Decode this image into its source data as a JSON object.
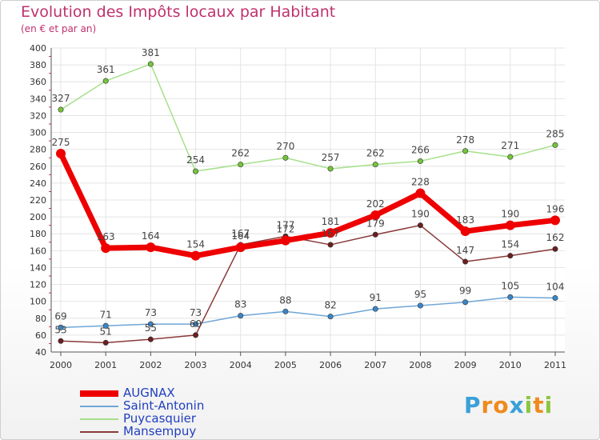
{
  "header": {
    "title": "Evolution des Impôts locaux par Habitant",
    "subtitle": "(en € et par an)"
  },
  "brand": {
    "letters": [
      "P",
      "r",
      "o",
      "x",
      "i",
      "t",
      "i"
    ],
    "colors": [
      "#3aa0d8",
      "#f08a1c",
      "#f08a1c",
      "#3aa0d8",
      "#8cc63f",
      "#f08a1c",
      "#8cc63f"
    ]
  },
  "chart_data": {
    "type": "line",
    "x": [
      "2000",
      "2001",
      "2002",
      "2003",
      "2004",
      "2005",
      "2006",
      "2007",
      "2008",
      "2009",
      "2010",
      "2011"
    ],
    "ylim": [
      40,
      400
    ],
    "yticks": [
      40,
      60,
      80,
      100,
      120,
      140,
      160,
      180,
      200,
      220,
      240,
      260,
      280,
      300,
      320,
      340,
      360,
      380,
      400
    ],
    "grid": true,
    "legend_position": "bottom-left",
    "series": [
      {
        "name": "AUGNAX",
        "color": "#ee0000",
        "marker": "#ee0000",
        "width": 7,
        "values": [
          275,
          163,
          164,
          154,
          164,
          172,
          181,
          202,
          228,
          183,
          190,
          196
        ]
      },
      {
        "name": "Saint-Antonin",
        "color": "#6fa6d6",
        "marker": "#3a86c8",
        "width": 1.5,
        "values": [
          69,
          71,
          73,
          73,
          83,
          88,
          82,
          91,
          95,
          99,
          105,
          104
        ]
      },
      {
        "name": "Puycasquier",
        "color": "#a6e08a",
        "marker": "#74c43c",
        "width": 1.5,
        "values": [
          327,
          361,
          381,
          254,
          262,
          270,
          257,
          262,
          266,
          278,
          271,
          285
        ]
      },
      {
        "name": "Mansempuy",
        "color": "#8a3a3a",
        "marker": "#6a1f1f",
        "width": 1.5,
        "values": [
          53,
          51,
          55,
          60,
          167,
          177,
          167,
          179,
          190,
          147,
          154,
          162
        ]
      }
    ],
    "data_labels": [
      {
        "series": 0,
        "values": [
          "275",
          "163",
          "164",
          "154",
          "164",
          "172",
          "181",
          "202",
          "228",
          "183",
          "190",
          "196"
        ]
      },
      {
        "series": 1,
        "values": [
          "69",
          "71",
          "73",
          "73",
          "83",
          "88",
          "82",
          "91",
          "95",
          "99",
          "105",
          "104"
        ]
      },
      {
        "series": 2,
        "values": [
          "327",
          "361",
          "381",
          "254",
          "262",
          "270",
          "257",
          "262",
          "266",
          "278",
          "271",
          "285"
        ]
      },
      {
        "series": 3,
        "values": [
          "53",
          "51",
          "55",
          "60",
          "167",
          "177",
          "167",
          "179",
          "190",
          "147",
          "154",
          "162"
        ]
      }
    ]
  }
}
